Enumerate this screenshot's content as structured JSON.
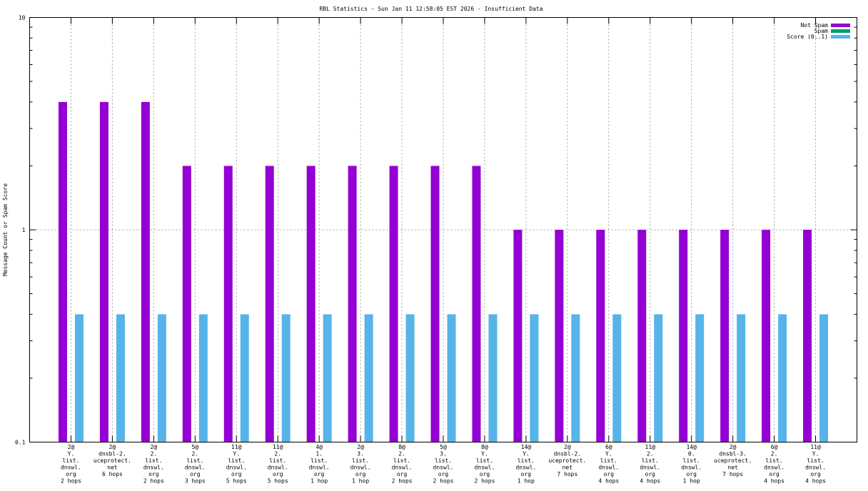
{
  "chart_data": {
    "type": "bar",
    "title": "RBL Statistics - Sun Jan 11 12:58:05 EST 2026 - Insufficient Data",
    "xlabel": "",
    "ylabel": "Message Count or Spam Score",
    "yscale": "log",
    "ylim": [
      0.1,
      10
    ],
    "yticks": [
      "0.1",
      "1",
      "10"
    ],
    "grid": true,
    "legend_position": "top-right",
    "categories": [
      [
        "2@",
        "Y.",
        "list.",
        "dnswl.",
        "org",
        "2 hops"
      ],
      [
        "2@",
        "dnsbl-2.",
        "uceprotect.",
        "net",
        "6 hops"
      ],
      [
        "2@",
        "2.",
        "list.",
        "dnswl.",
        "org",
        "2 hops"
      ],
      [
        "5@",
        "2.",
        "list.",
        "dnswl.",
        "org",
        "3 hops"
      ],
      [
        "11@",
        "Y.",
        "list.",
        "dnswl.",
        "org",
        "5 hops"
      ],
      [
        "11@",
        "2.",
        "list.",
        "dnswl.",
        "org",
        "5 hops"
      ],
      [
        "4@",
        "1.",
        "list.",
        "dnswl.",
        "org",
        "1 hop"
      ],
      [
        "2@",
        "3.",
        "list.",
        "dnswl.",
        "org",
        "1 hop"
      ],
      [
        "8@",
        "2.",
        "list.",
        "dnswl.",
        "org",
        "2 hops"
      ],
      [
        "5@",
        "3.",
        "list.",
        "dnswl.",
        "org",
        "2 hops"
      ],
      [
        "8@",
        "Y.",
        "list.",
        "dnswl.",
        "org",
        "2 hops"
      ],
      [
        "14@",
        "Y.",
        "list.",
        "dnswl.",
        "org",
        "1 hop"
      ],
      [
        "2@",
        "dnsbl-2.",
        "uceprotect.",
        "net",
        "7 hops"
      ],
      [
        "6@",
        "Y.",
        "list.",
        "dnswl.",
        "org",
        "4 hops"
      ],
      [
        "11@",
        "2.",
        "list.",
        "dnswl.",
        "org",
        "4 hops"
      ],
      [
        "14@",
        "0.",
        "list.",
        "dnswl.",
        "org",
        "1 hop"
      ],
      [
        "2@",
        "dnsbl-3.",
        "uceprotect.",
        "net",
        "7 hops"
      ],
      [
        "6@",
        "2.",
        "list.",
        "dnswl.",
        "org",
        "4 hops"
      ],
      [
        "11@",
        "Y.",
        "list.",
        "dnswl.",
        "org",
        "4 hops"
      ]
    ],
    "series": [
      {
        "name": "Not Spam",
        "color": "#9400d3",
        "values": [
          4,
          4,
          4,
          2,
          2,
          2,
          2,
          2,
          2,
          2,
          2,
          1,
          1,
          1,
          1,
          1,
          1,
          1,
          1
        ]
      },
      {
        "name": "Spam",
        "color": "#009e73",
        "values": [
          0,
          0,
          0,
          0,
          0,
          0,
          0,
          0,
          0,
          0,
          0,
          0,
          0,
          0,
          0,
          0,
          0,
          0,
          0
        ]
      },
      {
        "name": "Score (0..1)",
        "color": "#56b4e9",
        "values": [
          0.4,
          0.4,
          0.4,
          0.4,
          0.4,
          0.4,
          0.4,
          0.4,
          0.4,
          0.4,
          0.4,
          0.4,
          0.4,
          0.4,
          0.4,
          0.4,
          0.4,
          0.4,
          0.4
        ]
      }
    ]
  }
}
